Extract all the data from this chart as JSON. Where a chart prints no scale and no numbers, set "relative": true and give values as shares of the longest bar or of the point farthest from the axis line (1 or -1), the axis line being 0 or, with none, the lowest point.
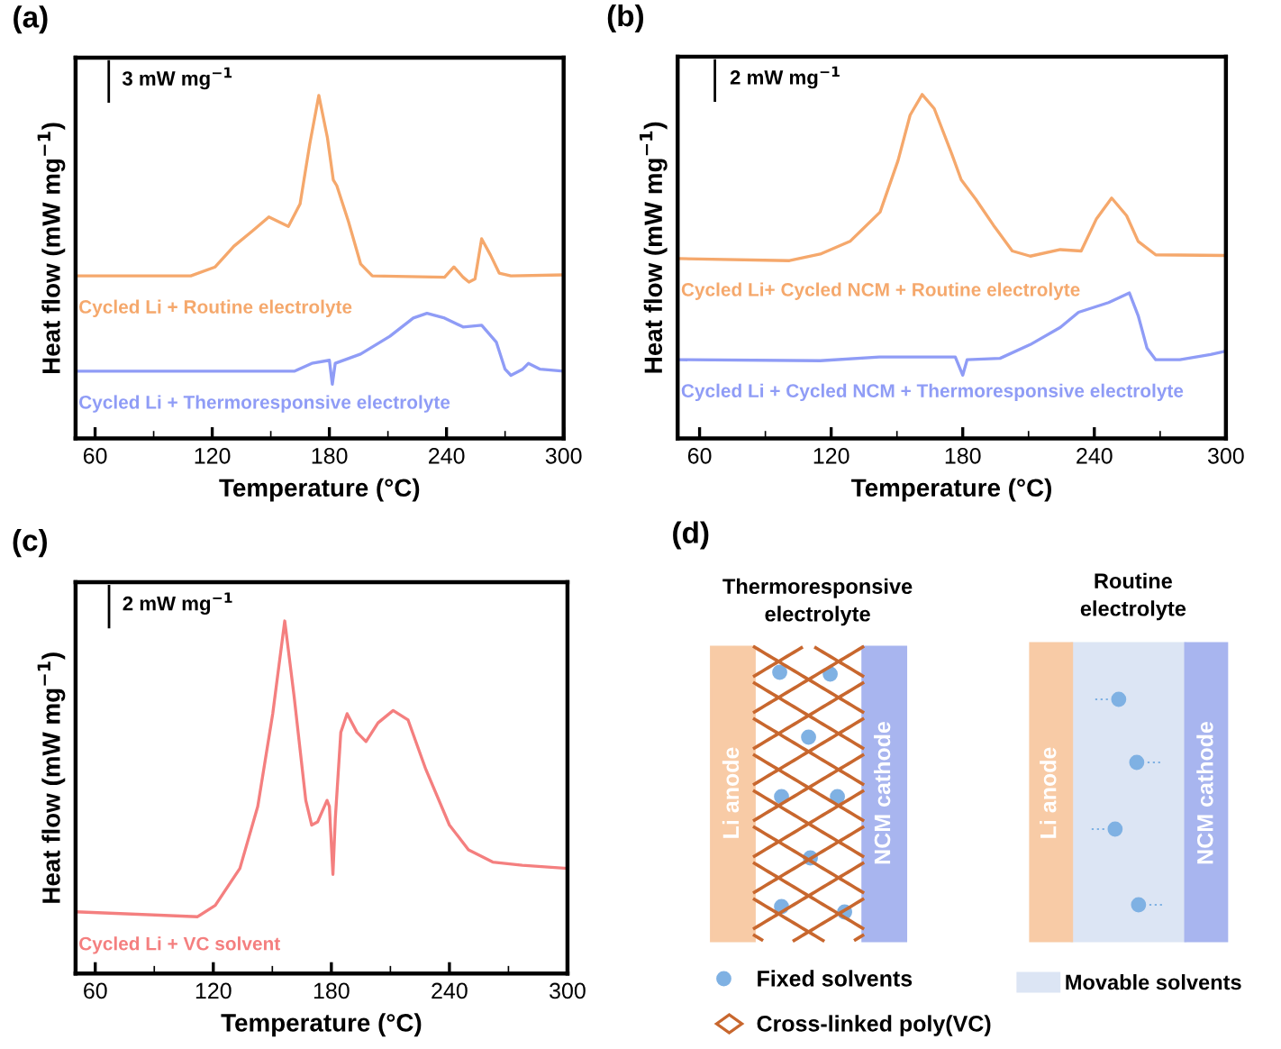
{
  "chart_data": [
    {
      "type": "line",
      "title": "(a)",
      "xlabel": "Temperature (°C)",
      "ylabel": "Heat flow (mW mg$^{−1}$)",
      "relative": true,
      "xlim": [
        50,
        300
      ],
      "xticks": [
        60,
        120,
        180,
        240,
        300
      ],
      "annotations": [
        "3 mW mg$^{−1}$"
      ],
      "legend": false,
      "series": [
        {
          "name": "Cycled Li + Routine electrolyte",
          "color": "#f5a86c",
          "x": [
            51,
            109,
            121.5,
            131,
            140.6,
            149,
            159,
            165,
            170,
            174.6,
            179,
            182,
            183.8,
            189.8,
            196,
            202,
            239,
            243.8,
            248.5,
            251.5,
            254.6,
            258,
            262.5,
            267,
            273,
            300
          ],
          "values": [
            0.474,
            0.474,
            0.5,
            0.56,
            0.605,
            0.646,
            0.618,
            0.684,
            0.86,
            1.0,
            0.877,
            0.754,
            0.737,
            0.632,
            0.509,
            0.474,
            0.47,
            0.5,
            0.47,
            0.456,
            0.465,
            0.582,
            0.535,
            0.482,
            0.474,
            0.477
          ]
        },
        {
          "name": "Cycled Li + Thermoresponsive electrolyte",
          "color": "#8f9cf6",
          "x": [
            51,
            162,
            171,
            180,
            181.5,
            183,
            196,
            211,
            223,
            230,
            239,
            248.5,
            258,
            265.5,
            270,
            273,
            279,
            282,
            288,
            300
          ],
          "values": [
            0.196,
            0.196,
            0.219,
            0.228,
            0.158,
            0.219,
            0.246,
            0.298,
            0.351,
            0.365,
            0.351,
            0.325,
            0.33,
            0.281,
            0.202,
            0.184,
            0.202,
            0.219,
            0.202,
            0.196
          ]
        }
      ]
    },
    {
      "type": "line",
      "title": "(b)",
      "xlabel": "Temperature (°C)",
      "ylabel": "Heat flow (mW mg$^{−1}$)",
      "relative": true,
      "xlim": [
        50,
        300
      ],
      "xticks": [
        60,
        120,
        180,
        240,
        300
      ],
      "annotations": [
        "2 mW mg$^{−1}$"
      ],
      "legend": false,
      "series": [
        {
          "name": "Cycled Li+ Cycled NCM + Routine electrolyte",
          "color": "#f5a86c",
          "x": [
            50.4,
            101,
            115,
            128.6,
            142.3,
            150.5,
            156,
            161.5,
            167,
            175,
            179.3,
            186,
            194,
            202.6,
            210.8,
            224.5,
            234,
            241,
            247.9,
            254.7,
            260,
            268,
            300
          ],
          "values": [
            0.523,
            0.517,
            0.536,
            0.573,
            0.658,
            0.808,
            0.94,
            1.0,
            0.959,
            0.827,
            0.752,
            0.695,
            0.62,
            0.545,
            0.53,
            0.549,
            0.545,
            0.639,
            0.699,
            0.648,
            0.573,
            0.534,
            0.532
          ]
        },
        {
          "name": "Cycled Li + Cycled NCM + Thermoresponsive electrolyte",
          "color": "#8f9cf6",
          "x": [
            50.4,
            115,
            142,
            176.6,
            180,
            182,
            197,
            210.8,
            224.5,
            232.8,
            246.5,
            256,
            260,
            264,
            268,
            279,
            293,
            300
          ],
          "values": [
            0.229,
            0.226,
            0.237,
            0.237,
            0.184,
            0.229,
            0.233,
            0.273,
            0.323,
            0.367,
            0.395,
            0.423,
            0.357,
            0.263,
            0.229,
            0.229,
            0.244,
            0.254
          ]
        }
      ]
    },
    {
      "type": "line",
      "title": "(c)",
      "xlabel": "Temperature (°C)",
      "ylabel": "Heat flow (mW mg$^{−1}$)",
      "relative": true,
      "xlim": [
        50,
        300
      ],
      "xticks": [
        60,
        120,
        180,
        240,
        300
      ],
      "annotations": [
        "2 mW mg$^{−1}$"
      ],
      "legend": false,
      "series": [
        {
          "name": "Cycled Li + VC solvent",
          "color": "#f47f7f",
          "x": [
            50,
            112,
            121,
            133.5,
            142.6,
            150.2,
            156.3,
            161,
            167,
            170,
            173,
            177.8,
            179,
            180.8,
            182,
            184.8,
            188,
            193,
            197.6,
            203.7,
            211.4,
            219,
            228,
            240,
            249.7,
            262,
            277,
            300
          ],
          "values": [
            0.175,
            0.161,
            0.193,
            0.298,
            0.474,
            0.737,
            1.0,
            0.789,
            0.491,
            0.421,
            0.43,
            0.491,
            0.474,
            0.281,
            0.439,
            0.684,
            0.737,
            0.684,
            0.658,
            0.711,
            0.746,
            0.719,
            0.579,
            0.421,
            0.351,
            0.316,
            0.307,
            0.298
          ]
        }
      ]
    },
    {
      "type": "other",
      "title": "(d)",
      "annotations": [
        "Thermoresponsive\nelectrolyte",
        "Routine\nelectrolyte",
        "Li anode",
        "NCM cathode",
        "Li anode",
        "NCM cathode",
        "Fixed solvents",
        "Cross-linked poly(VC)",
        "Movable solvents"
      ]
    }
  ]
}
